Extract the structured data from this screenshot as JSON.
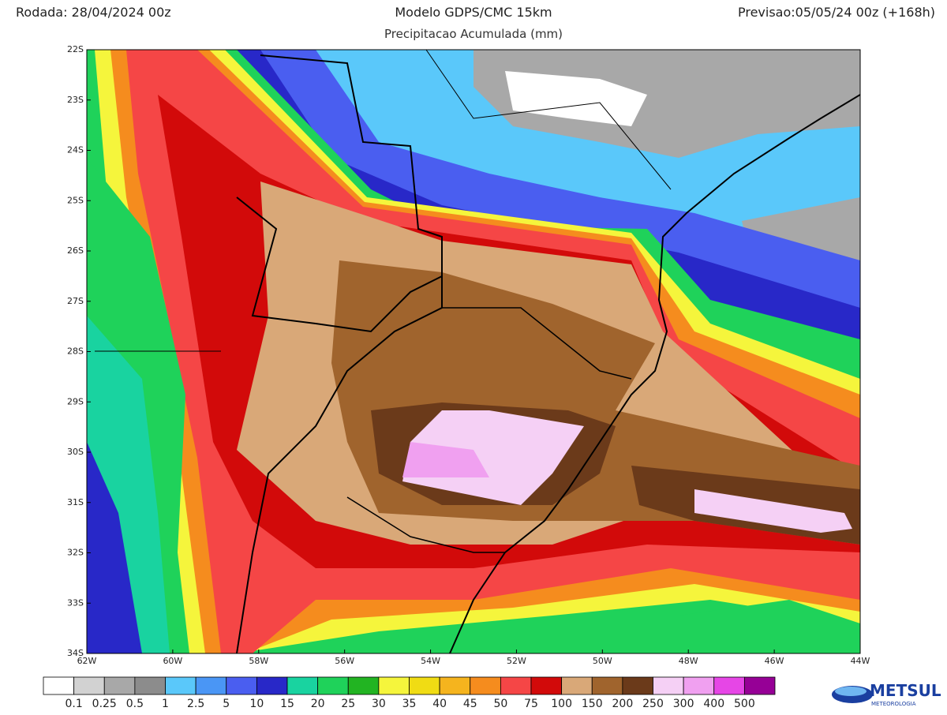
{
  "header": {
    "run": "Rodada: 28/04/2024 00z",
    "model": "Modelo GDPS/CMC 15km",
    "variable": "Precipitacao Acumulada (mm)",
    "forecast": "Previsao:05/05/24 00z (+168h)"
  },
  "map": {
    "lat_labels": [
      "22S",
      "23S",
      "24S",
      "25S",
      "26S",
      "27S",
      "28S",
      "29S",
      "30S",
      "31S",
      "32S",
      "33S",
      "34S"
    ],
    "lon_labels": [
      "62W",
      "60W",
      "58W",
      "56W",
      "54W",
      "52W",
      "50W",
      "48W",
      "46W",
      "44W"
    ]
  },
  "colorbar": {
    "labels": [
      "0.1",
      "0.25",
      "0.5",
      "1",
      "2.5",
      "5",
      "10",
      "15",
      "20",
      "25",
      "30",
      "35",
      "40",
      "45",
      "50",
      "75",
      "100",
      "150",
      "200",
      "250",
      "300",
      "400",
      "500"
    ],
    "colors": [
      "#ffffff",
      "#d2d2d2",
      "#a8a8a8",
      "#8c8c8c",
      "#5ac8fa",
      "#4a96f5",
      "#4a5ef0",
      "#2828c8",
      "#19d3a0",
      "#1fd25a",
      "#22b422",
      "#f5f53c",
      "#f0dc14",
      "#f5b41e",
      "#f58c1e",
      "#f54646",
      "#d20a0a",
      "#d9a878",
      "#a0642d",
      "#6b3a1a",
      "#f5d0f5",
      "#f0a0f0",
      "#e646e6",
      "#960096"
    ]
  },
  "logo": {
    "name": "METSUL",
    "tagline": "METEOROLOGIA"
  }
}
